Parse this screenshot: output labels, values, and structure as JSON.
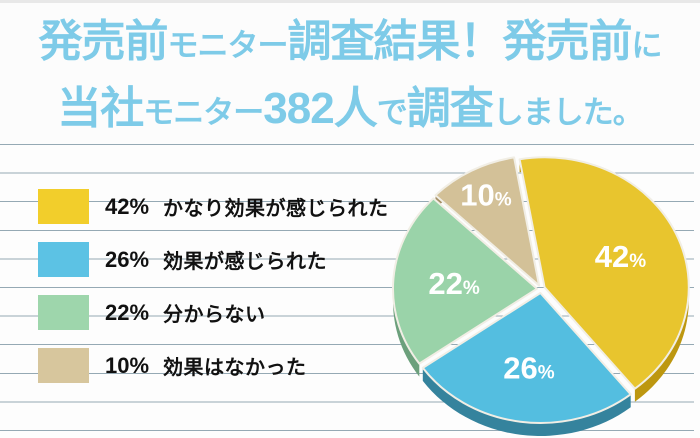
{
  "header": {
    "full_text": "発売前モニター調査結果！発売前に当社モニター382人で調査しました。",
    "text_color": "#7ECBE8",
    "line1_segments": [
      {
        "text": "発売前",
        "size": "big"
      },
      {
        "text": "モニター",
        "size": "small"
      },
      {
        "text": "調査結果！発売前",
        "size": "big"
      },
      {
        "text": "に",
        "size": "small"
      }
    ],
    "line2_segments": [
      {
        "text": "当社",
        "size": "big"
      },
      {
        "text": "モニター",
        "size": "small"
      },
      {
        "text": "382人",
        "size": "big"
      },
      {
        "text": "で",
        "size": "small"
      },
      {
        "text": "調査",
        "size": "big"
      },
      {
        "text": "しました。",
        "size": "small"
      }
    ]
  },
  "legend": {
    "items": [
      {
        "pct": "42%",
        "label": "かなり効果が感じられた",
        "color": "#F2CE2B"
      },
      {
        "pct": "26%",
        "label": "効果が感じられた",
        "color": "#5CC2E4"
      },
      {
        "pct": "22%",
        "label": "分からない",
        "color": "#9ED6AC"
      },
      {
        "pct": "10%",
        "label": "効果はなかった",
        "color": "#D7C69D"
      }
    ]
  },
  "chart_data": {
    "type": "pie",
    "title": "発売前モニター調査結果！発売前に当社モニター382人で調査しました。",
    "sample_size": 382,
    "unit": "%",
    "start_angle_deg": -10,
    "direction": "clockwise",
    "legend_position": "left",
    "style": "3d-exploded",
    "slices": [
      {
        "label": "かなり効果が感じられた",
        "value": 42,
        "color": "#E8C52E",
        "side_color": "#BD9710"
      },
      {
        "label": "効果が感じられた",
        "value": 26,
        "color": "#54BEE0",
        "side_color": "#35839D"
      },
      {
        "label": "分からない",
        "value": 22,
        "color": "#9AD3A9",
        "side_color": "#6CA07C"
      },
      {
        "label": "効果はなかった",
        "value": 10,
        "color": "#D3C198",
        "side_color": "#A48F66"
      }
    ]
  }
}
